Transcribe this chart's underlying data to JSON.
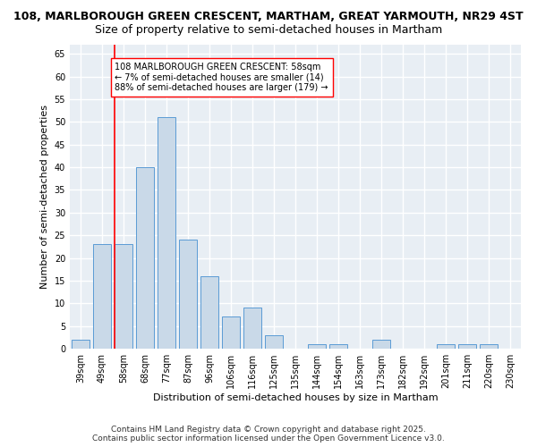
{
  "title_line1": "108, MARLBOROUGH GREEN CRESCENT, MARTHAM, GREAT YARMOUTH, NR29 4ST",
  "title_line2": "Size of property relative to semi-detached houses in Martham",
  "xlabel": "Distribution of semi-detached houses by size in Martham",
  "ylabel": "Number of semi-detached properties",
  "categories": [
    "39sqm",
    "49sqm",
    "58sqm",
    "68sqm",
    "77sqm",
    "87sqm",
    "96sqm",
    "106sqm",
    "116sqm",
    "125sqm",
    "135sqm",
    "144sqm",
    "154sqm",
    "163sqm",
    "173sqm",
    "182sqm",
    "192sqm",
    "201sqm",
    "211sqm",
    "220sqm",
    "230sqm"
  ],
  "values": [
    2,
    23,
    23,
    40,
    51,
    24,
    16,
    7,
    9,
    3,
    0,
    1,
    1,
    0,
    2,
    0,
    0,
    1,
    1,
    1,
    0
  ],
  "bar_color": "#c9d9e8",
  "bar_edge_color": "#5b9bd5",
  "red_line_index": 2,
  "annotation_text": "108 MARLBOROUGH GREEN CRESCENT: 58sqm\n← 7% of semi-detached houses are smaller (14)\n88% of semi-detached houses are larger (179) →",
  "ylim": [
    0,
    67
  ],
  "yticks": [
    0,
    5,
    10,
    15,
    20,
    25,
    30,
    35,
    40,
    45,
    50,
    55,
    60,
    65
  ],
  "footer_line1": "Contains HM Land Registry data © Crown copyright and database right 2025.",
  "footer_line2": "Contains public sector information licensed under the Open Government Licence v3.0.",
  "background_color": "#e8eef4",
  "grid_color": "#ffffff",
  "title_fontsize": 9,
  "subtitle_fontsize": 9,
  "axis_label_fontsize": 8,
  "tick_fontsize": 7,
  "annotation_fontsize": 7,
  "footer_fontsize": 6.5
}
